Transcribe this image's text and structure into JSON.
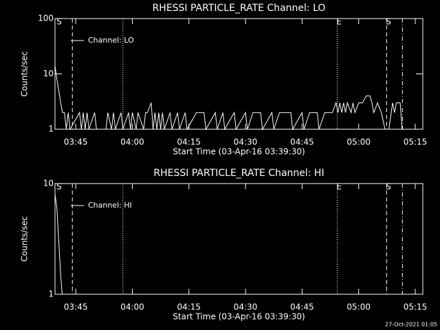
{
  "charts": [
    {
      "type": "line",
      "title": "RHESSI PARTICLE_RATE Channel: LO",
      "ylabel": "Counts/sec",
      "xlabel": "Start Time (03-Apr-16 03:39:30)",
      "log_y": true,
      "xlim": [
        39.5,
        137
      ],
      "ylim": [
        1,
        100
      ],
      "yticks": [
        1,
        10,
        100
      ],
      "xticks": [
        {
          "value": 45,
          "label": "03:45"
        },
        {
          "value": 60,
          "label": "04:00"
        },
        {
          "value": 75,
          "label": "04:15"
        },
        {
          "value": 90,
          "label": "04:30"
        },
        {
          "value": 105,
          "label": "04:45"
        },
        {
          "value": 120,
          "label": "05:00"
        },
        {
          "value": 135,
          "label": "05:15"
        }
      ],
      "vlines": [
        {
          "x": 44.1,
          "dash": "dashed"
        },
        {
          "x": 57.5,
          "dash": "dotted"
        },
        {
          "x": 114.3,
          "dash": "dotted"
        },
        {
          "x": 127.4,
          "dash": "dashed"
        },
        {
          "x": 131.6,
          "dash": "dashdot"
        }
      ],
      "markers": [
        {
          "x": 40.6,
          "label": "S"
        },
        {
          "x": 114.8,
          "label": "E"
        },
        {
          "x": 127.9,
          "label": "S"
        }
      ],
      "series": [
        {
          "name": "Channel: LO",
          "color": "#ffffff",
          "x": [
            39.5,
            40,
            40.5,
            41,
            41.5,
            42,
            42.5,
            43,
            43.5,
            46,
            46.5,
            47,
            47.5,
            48,
            48.5,
            50,
            50.5,
            53,
            53.5,
            54.5,
            55,
            55.5,
            57,
            57.5,
            59,
            59.5,
            60,
            61,
            61.5,
            63,
            63.5,
            64,
            65,
            65.5,
            66,
            66.5,
            67,
            67.5,
            68,
            68.5,
            70,
            70.5,
            72,
            72.5,
            74,
            74.5,
            77,
            79,
            79.5,
            82,
            82.5,
            84,
            84.5,
            87,
            87.5,
            90,
            90.5,
            92,
            94,
            94.5,
            97,
            97.5,
            99,
            102,
            102.5,
            105,
            105.5,
            107,
            109,
            109.5,
            111,
            113,
            114,
            114.5,
            115,
            115.5,
            116,
            116.5,
            117,
            118,
            118.5,
            119,
            120,
            121,
            122,
            123,
            123.5,
            124,
            125,
            126,
            127,
            128,
            129,
            129.5,
            130,
            131,
            131.5,
            132
          ],
          "values": [
            14,
            8,
            5,
            3,
            2,
            2,
            1,
            2,
            1,
            2,
            1,
            2,
            1,
            2,
            1,
            2,
            1,
            1,
            2,
            1,
            2,
            1,
            2,
            1,
            2,
            1,
            2,
            1,
            2,
            1,
            2,
            2,
            3,
            1,
            2,
            1,
            2,
            1,
            2,
            1,
            2,
            1,
            2,
            1,
            2,
            1,
            2,
            2,
            1,
            2,
            1,
            2,
            1,
            2,
            1,
            2,
            1,
            2,
            2,
            1,
            2,
            1,
            2,
            2,
            1,
            2,
            1,
            2,
            2,
            1,
            2,
            2,
            3,
            2,
            3,
            2,
            3,
            2,
            3,
            2,
            3,
            2,
            3,
            3,
            4,
            4,
            3,
            2,
            3,
            2,
            1,
            1,
            3,
            2,
            3,
            3,
            1,
            1
          ]
        }
      ]
    },
    {
      "type": "line",
      "title": "RHESSI PARTICLE_RATE Channel: HI",
      "ylabel": "Counts/sec",
      "xlabel": "Start Time (03-Apr-16 03:39:30)",
      "log_y": true,
      "xlim": [
        39.5,
        137
      ],
      "ylim": [
        1,
        10
      ],
      "yticks": [
        1,
        10
      ],
      "xticks": [
        {
          "value": 45,
          "label": "03:45"
        },
        {
          "value": 60,
          "label": "04:00"
        },
        {
          "value": 75,
          "label": "04:15"
        },
        {
          "value": 90,
          "label": "04:30"
        },
        {
          "value": 105,
          "label": "04:45"
        },
        {
          "value": 120,
          "label": "05:00"
        },
        {
          "value": 135,
          "label": "05:15"
        }
      ],
      "vlines": [
        {
          "x": 44.1,
          "dash": "dashed"
        },
        {
          "x": 57.5,
          "dash": "dotted"
        },
        {
          "x": 114.3,
          "dash": "dotted"
        },
        {
          "x": 127.4,
          "dash": "dashed"
        },
        {
          "x": 131.6,
          "dash": "dashdot"
        }
      ],
      "markers": [
        {
          "x": 40.6,
          "label": "S"
        },
        {
          "x": 114.8,
          "label": "E"
        },
        {
          "x": 127.9,
          "label": "S"
        }
      ],
      "series": [
        {
          "name": "Channel: HI",
          "color": "#ffffff",
          "x": [
            39.5,
            40,
            40.5,
            41,
            41.4
          ],
          "values": [
            8,
            6,
            3,
            1.5,
            1
          ]
        }
      ]
    }
  ],
  "footer": "27-Oct-2021 01:05"
}
